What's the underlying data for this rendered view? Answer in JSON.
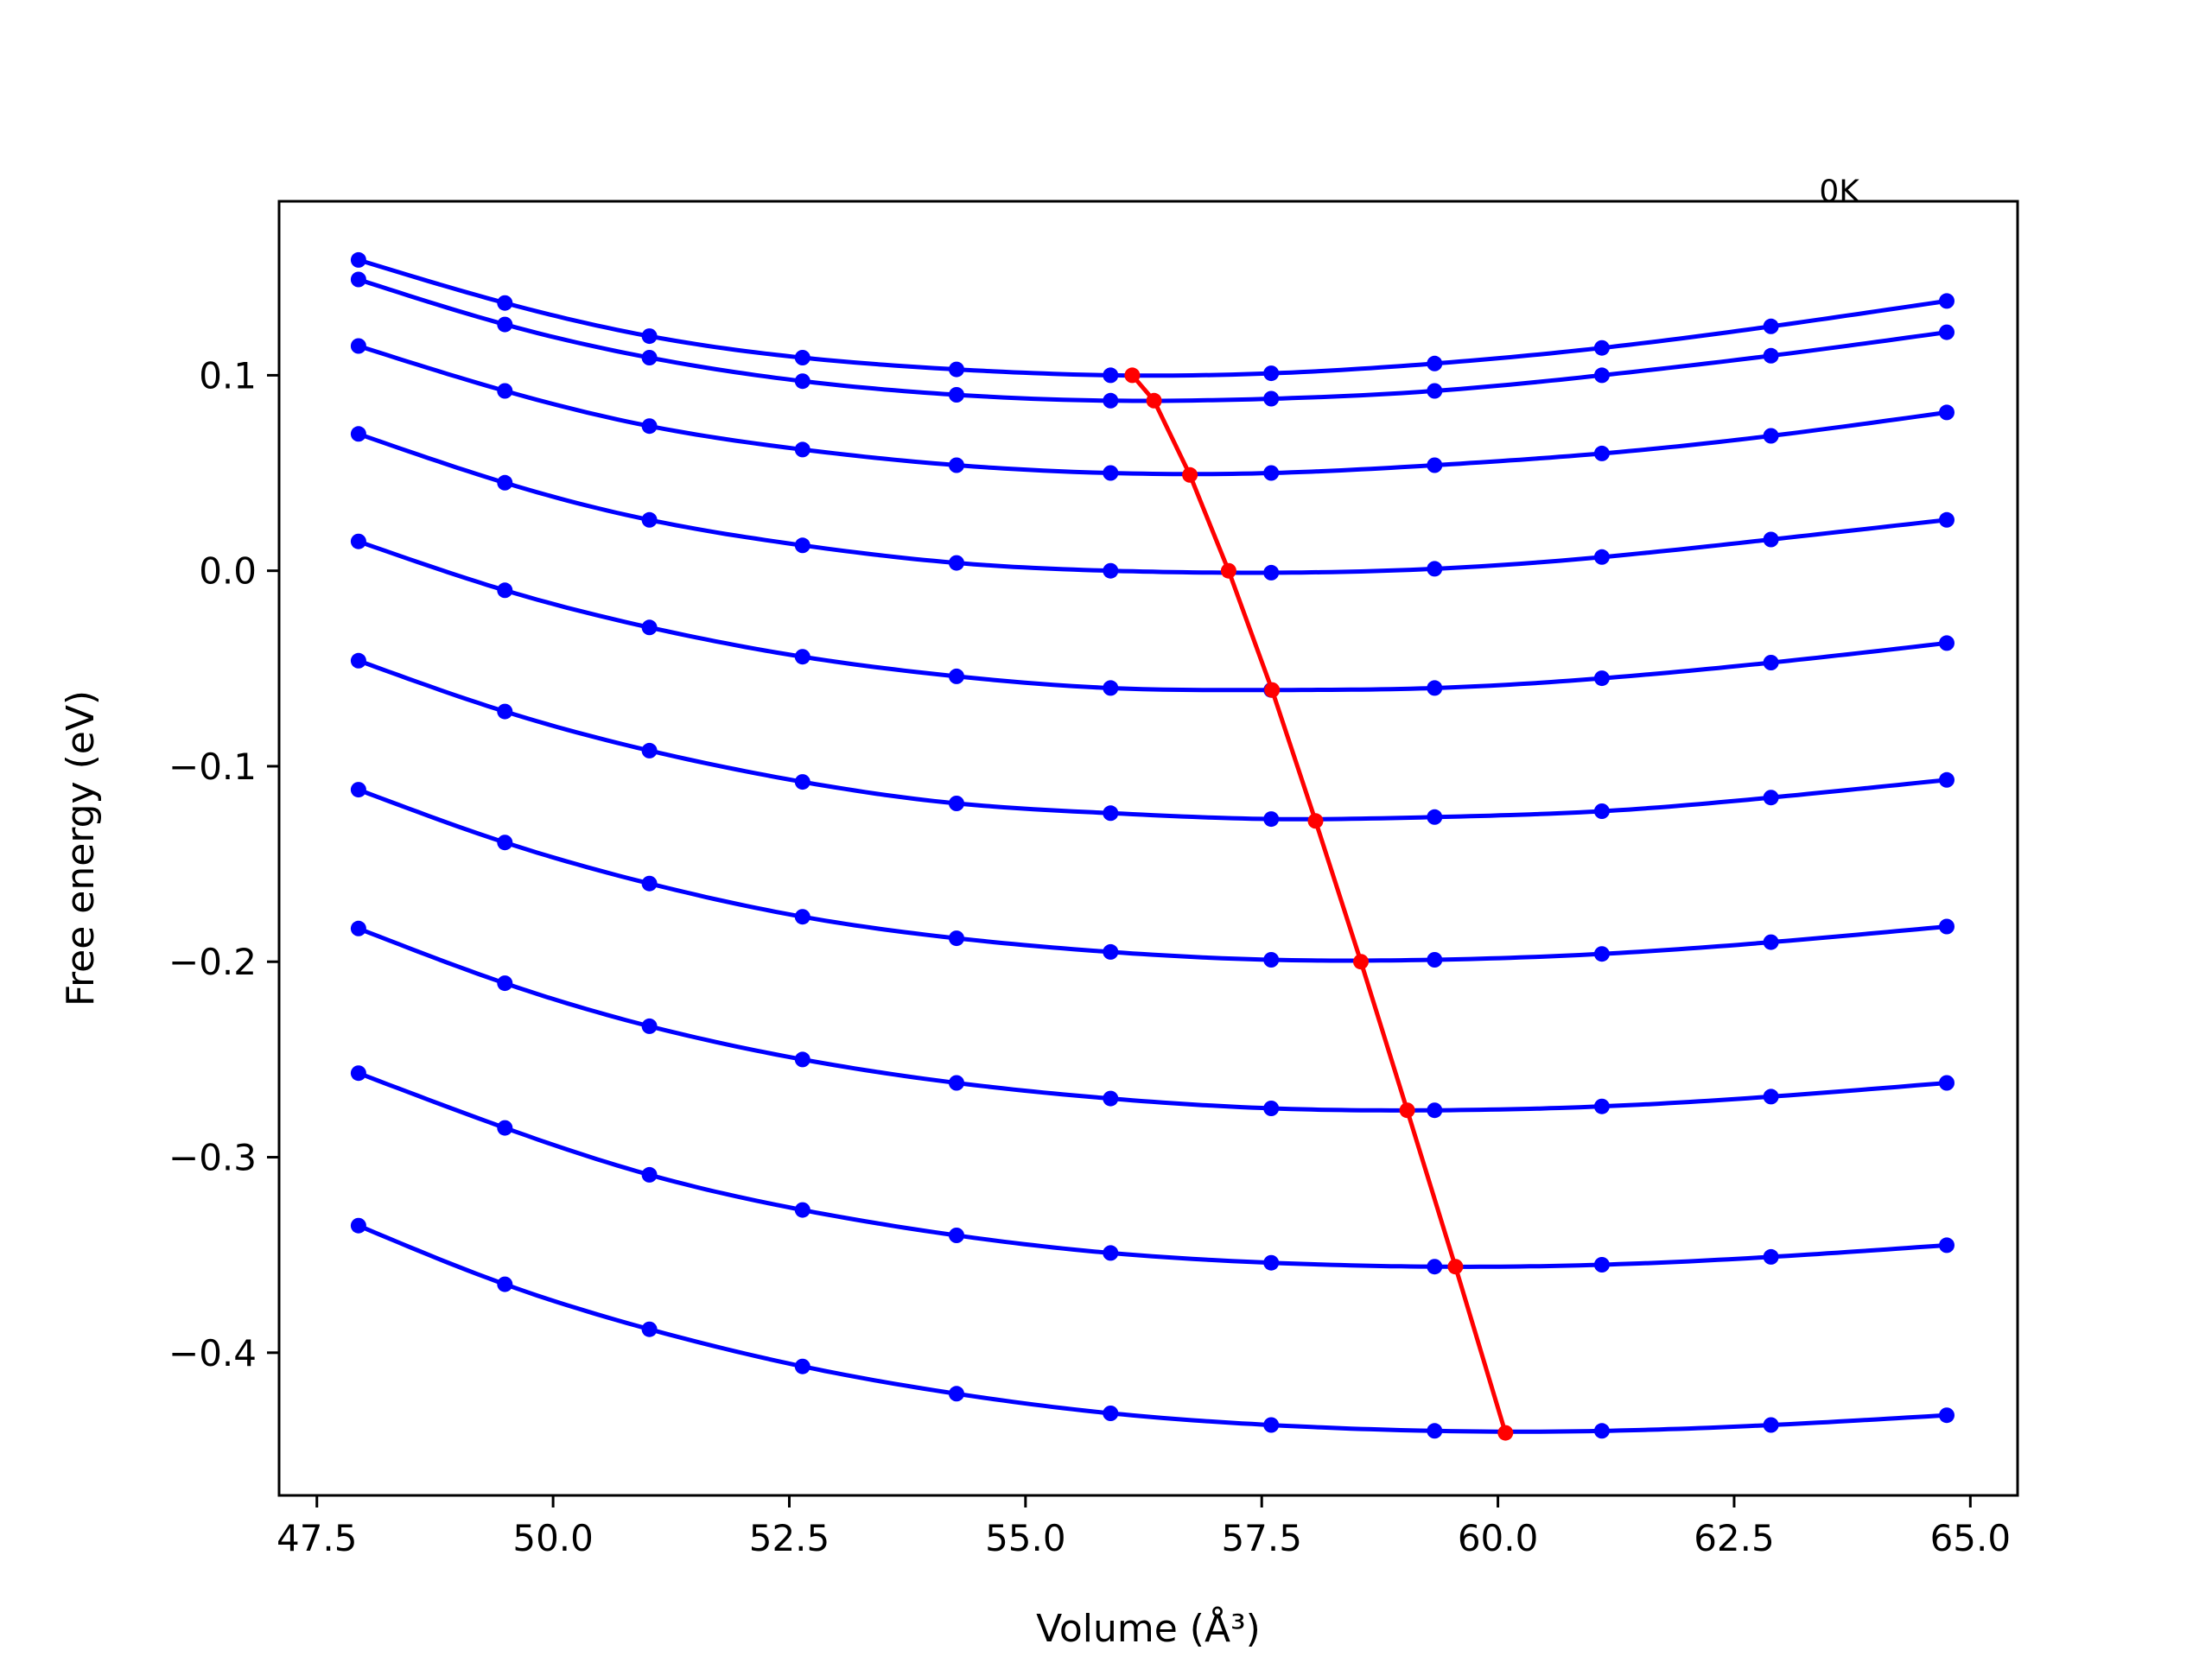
{
  "chart_data": {
    "type": "line",
    "title": "",
    "xlabel": "Volume (Å³)",
    "ylabel": "Free energy (eV)",
    "xlim": [
      47.1,
      65.5
    ],
    "ylim": [
      -0.473,
      0.189
    ],
    "x_ticks": [
      47.5,
      50.0,
      52.5,
      55.0,
      57.5,
      60.0,
      62.5,
      65.0
    ],
    "x_tick_labels": [
      "47.5",
      "50.0",
      "52.5",
      "55.0",
      "57.5",
      "60.0",
      "62.5",
      "65.0"
    ],
    "y_ticks": [
      0.1,
      0.0,
      -0.1,
      -0.2,
      -0.3,
      -0.4
    ],
    "y_tick_labels": [
      "0.1",
      "0.0",
      "−0.1",
      "−0.2",
      "−0.3",
      "−0.4"
    ],
    "grid": false,
    "annotations": [
      {
        "text": "0K",
        "x": 63.4,
        "y": 0.195
      }
    ],
    "colors": {
      "curves": "#0000ff",
      "minimum_path": "#ff0000",
      "frame": "#000000"
    },
    "volumes": [
      47.94,
      49.49,
      51.02,
      52.64,
      54.27,
      55.9,
      57.6,
      59.33,
      61.1,
      62.89,
      64.75
    ],
    "series": [
      {
        "values": [
          0.159,
          0.137,
          0.12,
          0.109,
          0.103,
          0.1,
          0.101,
          0.106,
          0.114,
          0.125,
          0.138
        ]
      },
      {
        "values": [
          0.149,
          0.126,
          0.109,
          0.097,
          0.09,
          0.087,
          0.088,
          0.092,
          0.1,
          0.11,
          0.122
        ]
      },
      {
        "values": [
          0.115,
          0.092,
          0.074,
          0.062,
          0.054,
          0.05,
          0.05,
          0.054,
          0.06,
          0.069,
          0.081
        ]
      },
      {
        "values": [
          0.07,
          0.045,
          0.026,
          0.013,
          0.004,
          0.0,
          -0.001,
          0.001,
          0.007,
          0.016,
          0.026
        ]
      },
      {
        "values": [
          0.015,
          -0.01,
          -0.029,
          -0.044,
          -0.054,
          -0.06,
          -0.061,
          -0.06,
          -0.055,
          -0.047,
          -0.037
        ]
      },
      {
        "values": [
          -0.046,
          -0.072,
          -0.092,
          -0.108,
          -0.119,
          -0.124,
          -0.127,
          -0.126,
          -0.123,
          -0.116,
          -0.107
        ]
      },
      {
        "values": [
          -0.112,
          -0.139,
          -0.16,
          -0.177,
          -0.188,
          -0.195,
          -0.199,
          -0.199,
          -0.196,
          -0.19,
          -0.182
        ]
      },
      {
        "values": [
          -0.183,
          -0.211,
          -0.233,
          -0.25,
          -0.262,
          -0.27,
          -0.275,
          -0.276,
          -0.274,
          -0.269,
          -0.262
        ]
      },
      {
        "values": [
          -0.257,
          -0.285,
          -0.309,
          -0.327,
          -0.34,
          -0.349,
          -0.354,
          -0.356,
          -0.355,
          -0.351,
          -0.345
        ]
      },
      {
        "values": [
          -0.335,
          -0.365,
          -0.388,
          -0.407,
          -0.421,
          -0.431,
          -0.437,
          -0.44,
          -0.44,
          -0.437,
          -0.432
        ]
      }
    ],
    "minimum_path": {
      "x": [
        56.13,
        56.36,
        56.74,
        57.15,
        57.61,
        58.07,
        58.55,
        59.04,
        59.55,
        60.08
      ],
      "y": [
        0.1,
        0.087,
        0.049,
        0.0,
        -0.061,
        -0.128,
        -0.2,
        -0.276,
        -0.356,
        -0.441
      ]
    }
  }
}
